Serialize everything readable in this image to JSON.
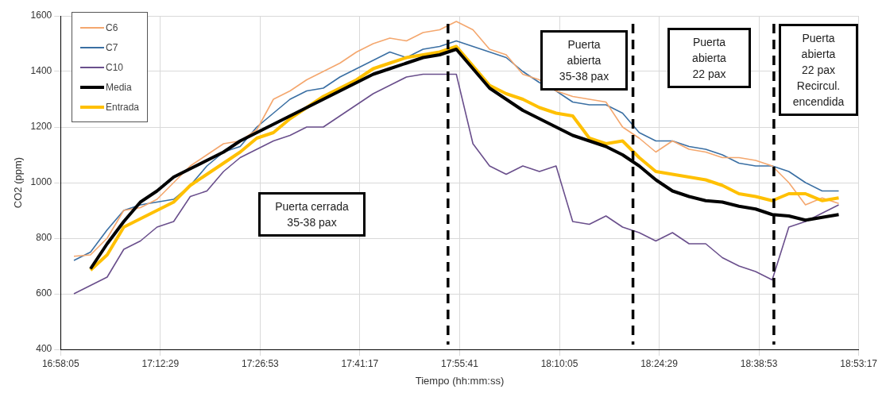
{
  "chart_data": {
    "type": "line",
    "xlabel": "Tiempo (hh:mm:ss)",
    "ylabel": "CO2 (ppm)",
    "x": [
      17.0,
      17.04,
      17.08,
      17.12,
      17.16,
      17.2,
      17.24,
      17.28,
      17.32,
      17.36,
      17.4,
      17.44,
      17.48,
      17.52,
      17.56,
      17.6,
      17.64,
      17.68,
      17.72,
      17.76,
      17.8,
      17.84,
      17.88,
      17.92,
      17.96,
      18.0,
      18.04,
      18.08,
      18.12,
      18.16,
      18.2,
      18.24,
      18.28,
      18.32,
      18.36,
      18.4,
      18.44,
      18.48,
      18.52,
      18.56,
      18.6,
      18.64,
      18.68,
      18.72,
      18.76,
      18.8,
      18.84
    ],
    "series": [
      {
        "name": "C6",
        "color": "#f4a76e",
        "values": [
          735,
          740,
          800,
          900,
          910,
          940,
          1000,
          1060,
          1100,
          1140,
          1150,
          1190,
          1300,
          1330,
          1370,
          1400,
          1430,
          1470,
          1500,
          1520,
          1510,
          1540,
          1550,
          1580,
          1550,
          1480,
          1460,
          1390,
          1370,
          1330,
          1310,
          1300,
          1290,
          1200,
          1160,
          1110,
          1150,
          1120,
          1110,
          1090,
          1090,
          1080,
          1060,
          1000,
          920,
          945,
          925
        ]
      },
      {
        "name": "C7",
        "color": "#3a6fa3",
        "values": [
          720,
          750,
          830,
          900,
          920,
          930,
          940,
          990,
          1060,
          1110,
          1130,
          1200,
          1250,
          1300,
          1330,
          1340,
          1380,
          1410,
          1440,
          1470,
          1450,
          1480,
          1490,
          1510,
          1490,
          1470,
          1450,
          1400,
          1360,
          1330,
          1290,
          1280,
          1280,
          1250,
          1180,
          1150,
          1150,
          1130,
          1120,
          1100,
          1070,
          1060,
          1060,
          1040,
          1000,
          970,
          970
        ]
      },
      {
        "name": "C10",
        "color": "#6a4f8c",
        "values": [
          600,
          630,
          660,
          760,
          790,
          840,
          860,
          950,
          970,
          1040,
          1090,
          1120,
          1150,
          1170,
          1200,
          1200,
          1240,
          1280,
          1320,
          1350,
          1380,
          1390,
          1390,
          1390,
          1140,
          1060,
          1030,
          1060,
          1040,
          1060,
          860,
          850,
          880,
          840,
          820,
          790,
          820,
          780,
          780,
          730,
          700,
          680,
          650,
          840,
          860,
          890,
          920
        ]
      },
      {
        "name": "Media",
        "color": "#000000",
        "values": [
          null,
          690,
          780,
          860,
          930,
          970,
          1020,
          1050,
          1080,
          1110,
          1150,
          1180,
          1210,
          1240,
          1270,
          1300,
          1330,
          1360,
          1390,
          1410,
          1430,
          1450,
          1460,
          1480,
          1410,
          1340,
          1300,
          1260,
          1230,
          1200,
          1170,
          1150,
          1130,
          1100,
          1060,
          1010,
          970,
          950,
          935,
          930,
          915,
          905,
          885,
          880,
          865,
          875,
          885
        ]
      },
      {
        "name": "Entrada",
        "color": "#ffc000",
        "values": [
          null,
          685,
          740,
          840,
          870,
          900,
          930,
          990,
          1030,
          1070,
          1110,
          1160,
          1180,
          1230,
          1270,
          1310,
          1340,
          1370,
          1410,
          1430,
          1450,
          1460,
          1470,
          1490,
          1420,
          1350,
          1320,
          1300,
          1270,
          1250,
          1240,
          1160,
          1140,
          1150,
          1090,
          1040,
          1030,
          1020,
          1010,
          990,
          960,
          950,
          935,
          960,
          960,
          935,
          945
        ]
      }
    ],
    "xlim": [
      16.968056,
      18.888056
    ],
    "xticks": [
      {
        "value": 16.968056,
        "label": "16:58:05"
      },
      {
        "value": 17.208056,
        "label": "17:12:29"
      },
      {
        "value": 17.448056,
        "label": "17:26:53"
      },
      {
        "value": 17.688056,
        "label": "17:41:17"
      },
      {
        "value": 17.928056,
        "label": "17:55:41"
      },
      {
        "value": 18.168056,
        "label": "18:10:05"
      },
      {
        "value": 18.408056,
        "label": "18:24:29"
      },
      {
        "value": 18.648056,
        "label": "18:38:53"
      },
      {
        "value": 18.888056,
        "label": "18:53:17"
      }
    ],
    "ylim": [
      400,
      1600
    ],
    "yticks": [
      400,
      600,
      800,
      1000,
      1200,
      1400,
      1600
    ],
    "grid": true,
    "legend": "top left",
    "marker": "none",
    "ref_lines": [
      {
        "axis": "x",
        "value": 17.9,
        "color": "#000000",
        "line_style": "dashed"
      },
      {
        "axis": "x",
        "value": 18.345,
        "color": "#000000",
        "line_style": "dashed"
      },
      {
        "axis": "x",
        "value": 18.684,
        "color": "#000000",
        "line_style": "dashed"
      }
    ],
    "annotations": [
      "Puerta cerrada\n35-38 pax",
      "Puerta\nabierta\n35-38 pax",
      "Puerta\nabierta\n22 pax",
      "Puerta\nabierta\n22 pax\nRecircul.\nencendida"
    ]
  }
}
